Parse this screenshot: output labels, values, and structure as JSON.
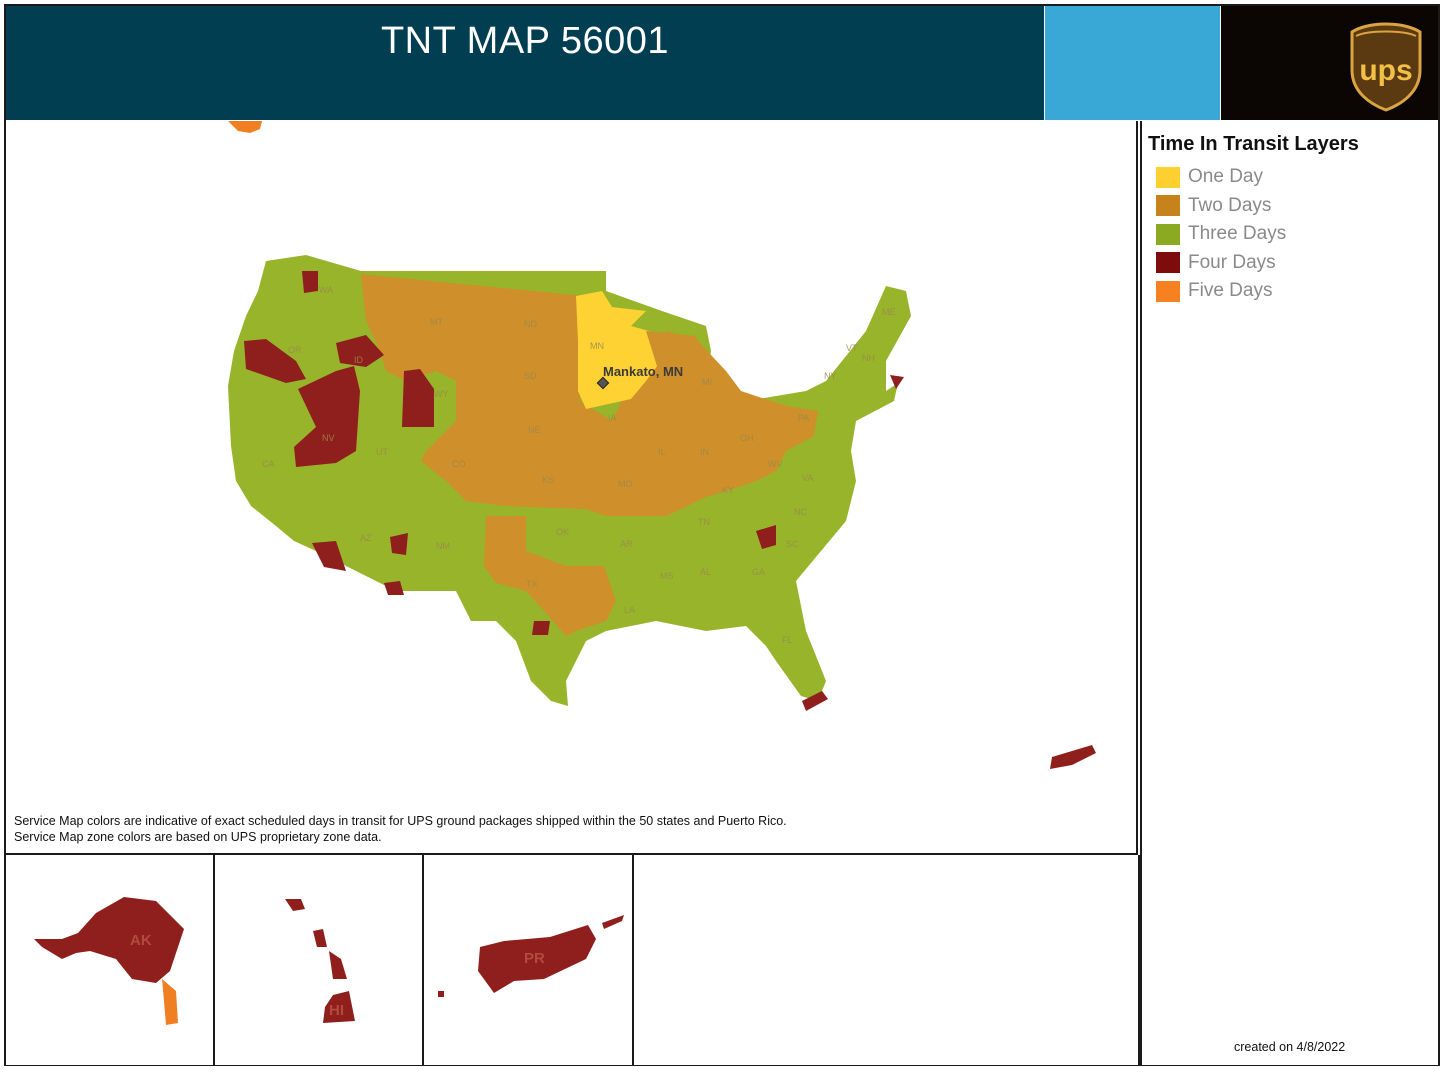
{
  "header": {
    "title": "TNT MAP 56001",
    "logo_text": "ups"
  },
  "colors": {
    "header_dark": "#023e51",
    "header_blue": "#3aa8d6",
    "one_day": "#fed233",
    "two_days": "#cf8f2a",
    "three_days": "#98b42b",
    "four_days": "#8e1f1c",
    "five_days": "#f07f22"
  },
  "legend": {
    "title": "Time In Transit Layers",
    "items": [
      {
        "label": "One Day",
        "color": "#fdcf2f"
      },
      {
        "label": "Two Days",
        "color": "#c6821b"
      },
      {
        "label": "Three Days",
        "color": "#8ca922"
      },
      {
        "label": "Four Days",
        "color": "#7d0d0b"
      },
      {
        "label": "Five Days",
        "color": "#f68120"
      }
    ]
  },
  "map": {
    "origin_label": "Mankato, MN",
    "state_labels": [
      "WA",
      "OR",
      "ID",
      "MT",
      "ND",
      "MN",
      "SD",
      "WY",
      "NE",
      "IA",
      "CO",
      "KS",
      "MO",
      "IL",
      "IN",
      "OH",
      "MI",
      "PA",
      "NY",
      "VT",
      "NH",
      "ME",
      "WV",
      "VA",
      "KY",
      "NC",
      "TN",
      "SC",
      "GA",
      "AL",
      "MS",
      "AR",
      "LA",
      "OK",
      "TX",
      "NM",
      "AZ",
      "UT",
      "NV",
      "CA",
      "FL"
    ],
    "inset_labels": {
      "alaska": "AK",
      "hawaii": "HI",
      "puerto_rico": "PR"
    }
  },
  "disclaimer": {
    "line1": "Service Map colors are indicative of exact scheduled days in transit for UPS ground packages shipped within the 50 states and Puerto Rico.",
    "line2": "Service Map zone colors are based on UPS proprietary zone data."
  },
  "footer": {
    "created": "created on 4/8/2022"
  }
}
